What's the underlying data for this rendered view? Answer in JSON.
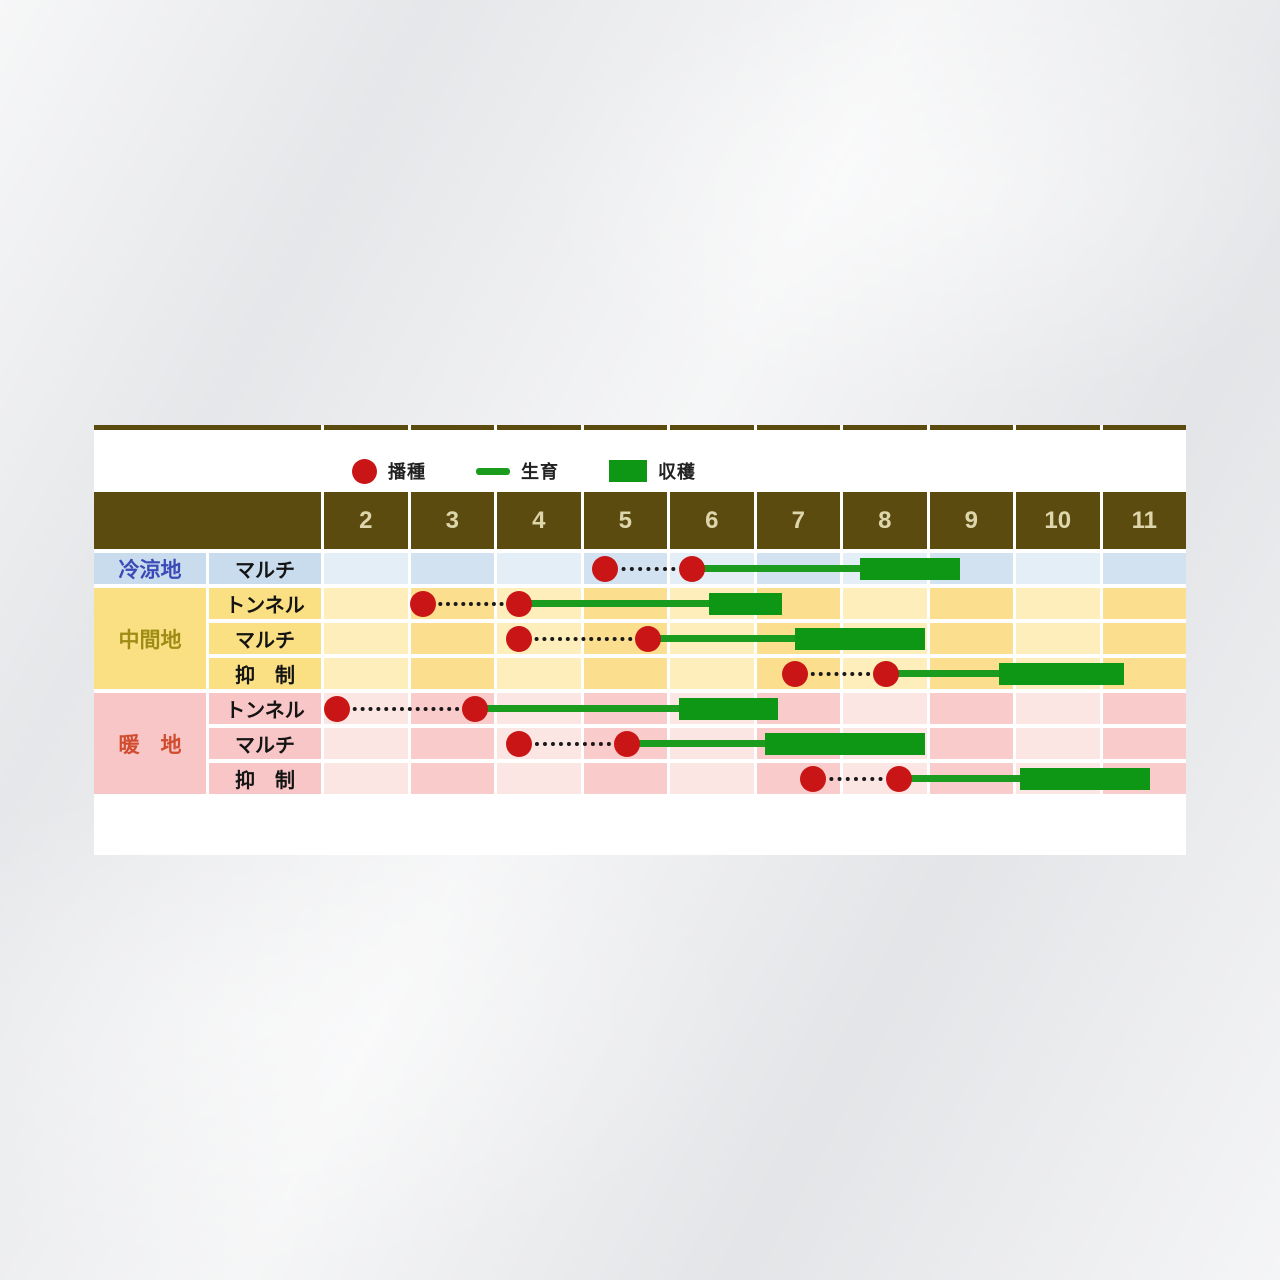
{
  "chart_data": {
    "type": "table",
    "title": "",
    "description_semantics": "planting-calendar-gantt",
    "legend": [
      {
        "icon": "sowing-dot-icon",
        "label": "播種",
        "color": "#c91515"
      },
      {
        "icon": "growth-line-icon",
        "label": "生育",
        "color": "#1b9c1e"
      },
      {
        "icon": "harvest-bar-icon",
        "label": "収穫",
        "color": "#0d9714"
      }
    ],
    "x_axis": {
      "unit": "month",
      "months": [
        "2",
        "3",
        "4",
        "5",
        "6",
        "7",
        "8",
        "9",
        "10",
        "11"
      ],
      "range": [
        2,
        12
      ]
    },
    "groups": [
      {
        "region": "冷涼地",
        "palette": "blue",
        "rows": [
          {
            "method": "マルチ",
            "sow_start": 5.25,
            "sow_end": 6.25,
            "growth": [
              6.25,
              8.2
            ],
            "harvest": [
              8.2,
              9.35
            ]
          }
        ]
      },
      {
        "region": "中間地",
        "palette": "yellow",
        "rows": [
          {
            "method": "トンネル",
            "sow_start": 3.15,
            "sow_end": 4.25,
            "growth": [
              4.25,
              6.45
            ],
            "harvest": [
              6.45,
              7.3
            ]
          },
          {
            "method": "マルチ",
            "sow_start": 4.25,
            "sow_end": 5.75,
            "growth": [
              5.75,
              7.45
            ],
            "harvest": [
              7.45,
              8.95
            ]
          },
          {
            "method": "抑　制",
            "sow_start": 7.45,
            "sow_end": 8.5,
            "growth": [
              8.5,
              9.8
            ],
            "harvest": [
              9.8,
              11.25
            ]
          }
        ]
      },
      {
        "region": "暖　地",
        "palette": "pink",
        "rows": [
          {
            "method": "トンネル",
            "sow_start": 2.15,
            "sow_end": 3.75,
            "growth": [
              3.75,
              6.1
            ],
            "harvest": [
              6.1,
              7.25
            ]
          },
          {
            "method": "マルチ",
            "sow_start": 4.25,
            "sow_end": 5.5,
            "growth": [
              5.5,
              7.1
            ],
            "harvest": [
              7.1,
              8.95
            ]
          },
          {
            "method": "抑　制",
            "sow_start": 7.65,
            "sow_end": 8.65,
            "growth": [
              8.65,
              10.05
            ],
            "harvest": [
              10.05,
              11.55
            ]
          }
        ]
      }
    ],
    "colors": {
      "header_bg": "#5c4b0f",
      "header_text": "#ddd5ac",
      "sow_dot": "#c91515",
      "growth_line": "#1b9c1e",
      "harvest_bar": "#0d9714",
      "region_text_blue": "#3c4ab8",
      "region_text_yellow": "#9e8c15",
      "region_text_pink": "#d14b2e"
    }
  }
}
